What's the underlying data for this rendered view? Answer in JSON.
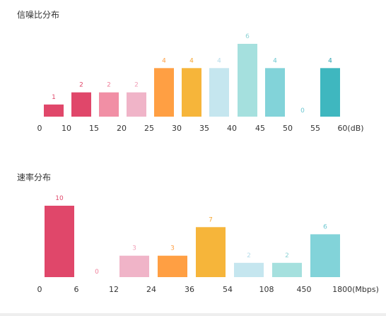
{
  "chart_data": [
    {
      "type": "bar",
      "title": "信噪比分布",
      "xlabel": "",
      "ylabel": "",
      "tick_labels": [
        "0",
        "10",
        "15",
        "20",
        "25",
        "30",
        "35",
        "40",
        "45",
        "50",
        "55",
        "60(dB)"
      ],
      "categories": [
        "0-10",
        "10-15",
        "15-20",
        "20-25",
        "25-30",
        "30-35",
        "35-40",
        "40-45",
        "45-50",
        "50-55",
        "55-60"
      ],
      "values": [
        1,
        2,
        2,
        2,
        4,
        4,
        4,
        6,
        4,
        0,
        4
      ],
      "colors": [
        "#e0476a",
        "#e0476a",
        "#f18fa5",
        "#f0b4c8",
        "#ff9f43",
        "#f6b53a",
        "#c5e6ef",
        "#a5e0de",
        "#82d3d9",
        "#82d3d9",
        "#3fb7bf"
      ],
      "label_colors": [
        "#e0476a",
        "#e0476a",
        "#f07f9a",
        "#f0a0b8",
        "#ff9f43",
        "#f6a732",
        "#b5dcea",
        "#8ed3d5",
        "#6cc7d1",
        "#6cc7d1",
        "#2aa3b0"
      ],
      "ylim": [
        0,
        6
      ],
      "grid": false,
      "legend": "none"
    },
    {
      "type": "bar",
      "title": "速率分布",
      "xlabel": "",
      "ylabel": "",
      "tick_labels": [
        "0",
        "6",
        "12",
        "24",
        "36",
        "54",
        "108",
        "450",
        "1800(Mbps)"
      ],
      "categories": [
        "0-6",
        "6-12",
        "12-24",
        "24-36",
        "36-54",
        "54-108",
        "108-450",
        "450-1800"
      ],
      "values": [
        10,
        0,
        3,
        3,
        7,
        2,
        2,
        6
      ],
      "colors": [
        "#e0476a",
        "#f18fa5",
        "#f0b4c8",
        "#ff9f43",
        "#f6b53a",
        "#c5e6ef",
        "#a5e0de",
        "#82d3d9"
      ],
      "label_colors": [
        "#e0476a",
        "#f07f9a",
        "#f0a0b8",
        "#ff9f43",
        "#f6a732",
        "#b5dcea",
        "#8ed3d5",
        "#6cc7d1"
      ],
      "ylim": [
        0,
        10
      ],
      "grid": false,
      "legend": "none"
    }
  ]
}
